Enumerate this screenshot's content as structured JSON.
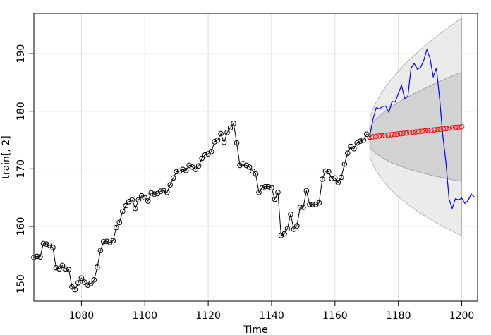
{
  "chart_data": {
    "type": "line",
    "xlabel": "Time",
    "ylabel": "train[, 2]",
    "xlim": [
      1065,
      1205
    ],
    "ylim": [
      147,
      197
    ],
    "x_ticks": [
      1080,
      1100,
      1120,
      1140,
      1160,
      1180,
      1200
    ],
    "y_ticks": [
      150,
      160,
      170,
      180,
      190
    ],
    "grid": true,
    "colors": {
      "observed": "#000000",
      "actual": "#0000ff",
      "forecast": "#ff0000",
      "outer_band": "#ebebeb",
      "inner_band": "#d2d2d2",
      "grid": "#dcdcdc"
    },
    "observed": {
      "start": 1065,
      "values": [
        154.6,
        154.8,
        154.7,
        157.0,
        156.9,
        156.7,
        156.3,
        152.8,
        152.6,
        153.2,
        152.6,
        152.5,
        149.5,
        149.0,
        150.2,
        151.0,
        150.3,
        149.8,
        150.1,
        150.7,
        152.9,
        155.8,
        157.3,
        157.4,
        157.2,
        157.5,
        159.8,
        160.7,
        162.6,
        163.6,
        164.3,
        164.6,
        163.1,
        164.6,
        165.3,
        165.0,
        164.4,
        165.8,
        165.6,
        165.7,
        166.1,
        166.2,
        165.9,
        167.2,
        168.4,
        169.5,
        169.6,
        169.9,
        169.7,
        170.6,
        170.3,
        169.9,
        170.5,
        171.8,
        172.4,
        172.6,
        173.0,
        174.7,
        175.0,
        176.1,
        174.6,
        176.3,
        177.1,
        177.9,
        174.5,
        170.6,
        170.9,
        170.6,
        170.3,
        169.6,
        169.1,
        165.9,
        166.7,
        166.9,
        166.9,
        166.7,
        164.7,
        165.9,
        158.4,
        158.7,
        159.6,
        162.1,
        159.5,
        160.1,
        163.3,
        163.3,
        166.2,
        163.8,
        163.8,
        163.8,
        164.1,
        168.2,
        169.6,
        169.5,
        168.3,
        168.4,
        167.6,
        168.5,
        170.8,
        172.7,
        173.9,
        173.5,
        174.5,
        174.8,
        175.0,
        176.0,
        175.5
      ]
    },
    "forecast": {
      "start": 1171,
      "end": 1200,
      "from": 175.5,
      "to": 177.3,
      "upper80_end": 186.8,
      "lower80_end": 167.8,
      "upper95_end": 196.2,
      "lower95_end": 158.4
    },
    "actual": {
      "start": 1171,
      "values": [
        175.8,
        178.6,
        180.6,
        180.4,
        180.8,
        180.9,
        179.8,
        181.7,
        181.6,
        183.1,
        184.5,
        182.2,
        182.6,
        187.5,
        188.3,
        187.3,
        187.6,
        188.8,
        190.7,
        189.2,
        186.0,
        187.5,
        182.3,
        175.9,
        171.2,
        164.7,
        163.1,
        164.8,
        164.6,
        164.9,
        164.0,
        164.5,
        165.6,
        165.1
      ]
    }
  }
}
